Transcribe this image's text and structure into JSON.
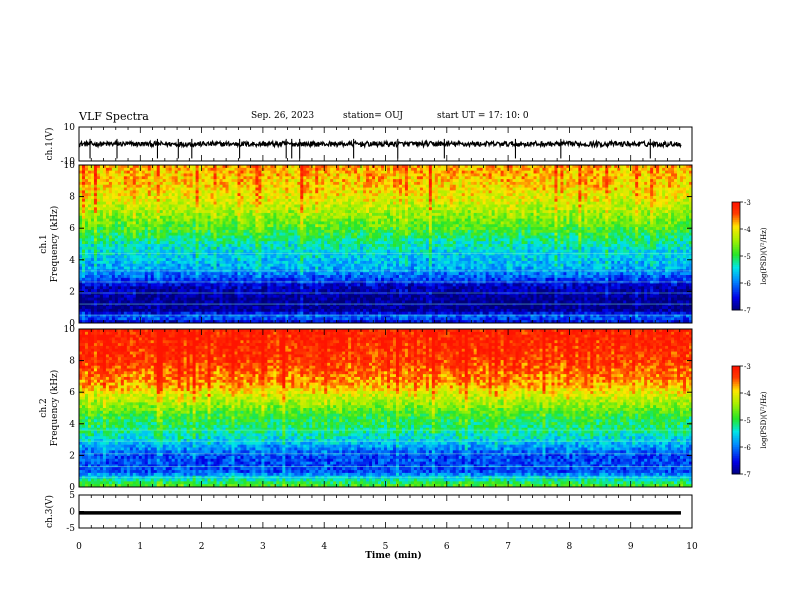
{
  "header": {
    "title": "VLF Spectra",
    "date": "Sep. 26, 2023",
    "station": "station= OUJ",
    "start": "start UT = 17: 10: 0"
  },
  "chart_data": [
    {
      "type": "line",
      "panel": "ch1-waveform",
      "ylabel": "ch.1(V)",
      "ylim": [
        -10,
        10
      ],
      "yticks": [
        "10",
        "-10"
      ],
      "xlim": [
        0,
        10
      ],
      "baseline_v": 0,
      "noise_amplitude_v": 1.5,
      "spikes_min": [
        0.18,
        0.62,
        1.28,
        1.62,
        1.84,
        2.62,
        3.38,
        3.47,
        3.6,
        4.48,
        5.2,
        5.96,
        7.12,
        7.86,
        9.32
      ]
    },
    {
      "type": "heatmap",
      "panel": "ch1-spectrogram",
      "ylabel_line1": "ch.1",
      "ylabel_line2": "Frequency (kHz)",
      "ylim": [
        0,
        10
      ],
      "yticks": [
        "0",
        "2",
        "4",
        "6",
        "8",
        "10"
      ],
      "xlim": [
        0,
        10
      ],
      "colorbar": {
        "label": "log(PSD)(V²/Hz)",
        "ticks": [
          "-3",
          "-4",
          "-5",
          "-6",
          "-7"
        ],
        "range": [
          -7,
          -3
        ]
      },
      "profile_khz": [
        [
          0,
          -6.7
        ],
        [
          0.4,
          -6.0
        ],
        [
          0.8,
          -6.9
        ],
        [
          1.5,
          -6.9
        ],
        [
          2.3,
          -6.7
        ],
        [
          2.8,
          -6.2
        ],
        [
          3.5,
          -5.7
        ],
        [
          4.5,
          -5.5
        ],
        [
          5.2,
          -5.2
        ],
        [
          6.0,
          -4.8
        ],
        [
          7.0,
          -4.4
        ],
        [
          8.0,
          -4.0
        ],
        [
          10.0,
          -3.7
        ]
      ]
    },
    {
      "type": "heatmap",
      "panel": "ch2-spectrogram",
      "ylabel_line1": "ch.2",
      "ylabel_line2": "Frequency (kHz)",
      "ylim": [
        0,
        10
      ],
      "yticks": [
        "0",
        "2",
        "4",
        "6",
        "8",
        "10"
      ],
      "xlim": [
        0,
        10
      ],
      "colorbar": {
        "label": "log(PSD)(V²/Hz)",
        "ticks": [
          "-3",
          "-4",
          "-5",
          "-6",
          "-7"
        ],
        "range": [
          -7,
          -3
        ]
      },
      "profile_khz": [
        [
          0,
          -4.7
        ],
        [
          0.4,
          -5.2
        ],
        [
          1.0,
          -6.2
        ],
        [
          2.0,
          -6.2
        ],
        [
          2.8,
          -5.6
        ],
        [
          3.5,
          -5.2
        ],
        [
          4.5,
          -4.9
        ],
        [
          5.5,
          -4.3
        ],
        [
          6.5,
          -3.7
        ],
        [
          8.0,
          -3.3
        ],
        [
          10.0,
          -3.1
        ]
      ]
    },
    {
      "type": "line",
      "panel": "ch3-waveform",
      "ylabel": "ch.3(V)",
      "ylim": [
        -5,
        5
      ],
      "yticks": [
        "5",
        "0",
        "-5"
      ],
      "xlim": [
        0,
        10
      ],
      "baseline_v": -0.4,
      "xlabel": "Time (min)",
      "xticks": [
        "0",
        "1",
        "2",
        "3",
        "4",
        "5",
        "6",
        "7",
        "8",
        "9",
        "10"
      ]
    }
  ]
}
